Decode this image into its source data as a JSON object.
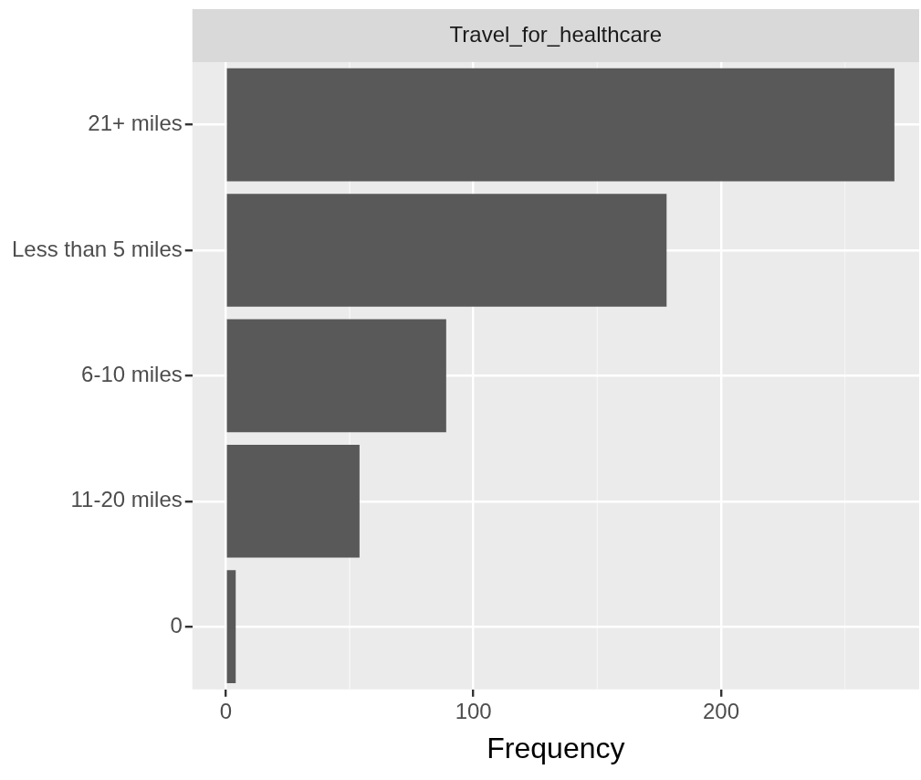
{
  "chart_data": {
    "type": "bar",
    "orientation": "horizontal",
    "title": "Travel_for_healthcare",
    "xlabel": "Frequency",
    "categories": [
      "21+ miles",
      "Less than 5 miles",
      "6-10 miles",
      "11-20 miles",
      "0"
    ],
    "values": [
      270,
      178,
      89,
      54,
      4
    ],
    "color": "#595959",
    "xlim": [
      -13.5,
      280
    ],
    "xticks": [
      0,
      100,
      200
    ],
    "grid": true
  }
}
